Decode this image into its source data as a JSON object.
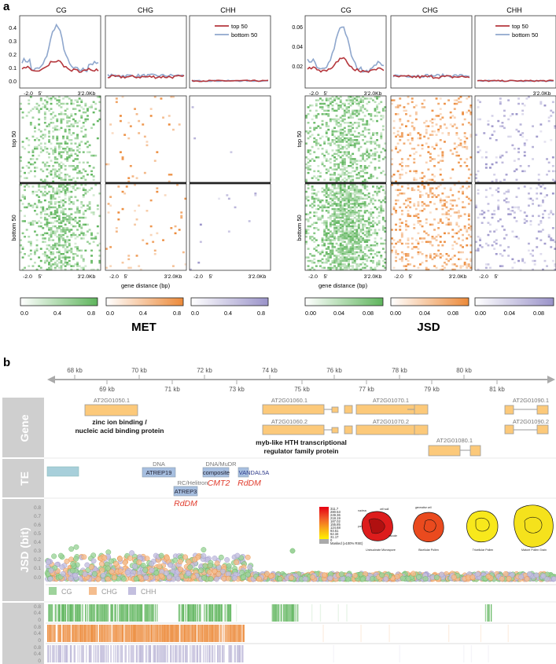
{
  "panel_labels": {
    "a": "a",
    "b": "b"
  },
  "panel_a": {
    "met": {
      "label": "MET",
      "contexts": [
        "CG",
        "CHG",
        "CHH"
      ],
      "legend_entries": [
        "top 50",
        "bottom 50"
      ],
      "profile_yticks": [
        "0.4",
        "0.3",
        "0.2",
        "0.1",
        "0.0"
      ],
      "profile_xticks": [
        "-2.0",
        "5'",
        "3'2.0Kb"
      ],
      "heatmap_xticks": [
        "-2.0",
        "5'",
        "3'2.0Kb"
      ],
      "row_labels": [
        "top 50",
        "bottom 50"
      ],
      "xlabel": "gene distance (bp)",
      "colorbar_ticks": [
        "0.0",
        "0.4",
        "0.8"
      ]
    },
    "jsd": {
      "label": "JSD",
      "contexts": [
        "CG",
        "CHG",
        "CHH"
      ],
      "legend_entries": [
        "top 50",
        "bottom 50"
      ],
      "profile_yticks": [
        "0.06",
        "0.04",
        "0.02"
      ],
      "profile_xticks": [
        "-2.0",
        "5'",
        "3'2.0Kb"
      ],
      "heatmap_xticks": [
        "-2.0",
        "5'",
        "3'2.0Kb"
      ],
      "row_labels": [
        "top 50",
        "bottom 50"
      ],
      "xlabel": "gene distance (bp)",
      "colorbar_ticks": [
        "0.00",
        "0.04",
        "0.08"
      ]
    },
    "colors": {
      "top": "#b5373d",
      "bottom": "#8fa7cd",
      "CG": "#5fb55d",
      "CHG": "#ec8a3a",
      "CHH": "#9a93c9"
    }
  },
  "panel_b": {
    "ruler_top": [
      "68 kb",
      "70 kb",
      "72 kb",
      "74 kb",
      "76 kb",
      "78 kb",
      "80 kb"
    ],
    "ruler_bottom": [
      "69 kb",
      "71 kb",
      "73 kb",
      "75 kb",
      "77 kb",
      "79 kb",
      "81 kb"
    ],
    "track_labels": {
      "gene": "Gene",
      "te": "TE",
      "jsd": "JSD (bit)"
    },
    "genes": [
      "AT2G01050.1",
      "AT2G01060.1",
      "AT2G01060.2",
      "AT2G01070.1",
      "AT2G01070.2",
      "AT2G01080.1",
      "AT2G01090.1",
      "AT2G01090.2"
    ],
    "gene_descriptions": {
      "zinc": "zinc ion binding /",
      "zinc2": "nucleic acid binding protein",
      "myb": "myb-like HTH transcriptional",
      "myb2": "regulator family protein"
    },
    "te": {
      "dna": "DNA",
      "atrep19": "ATREP19",
      "rc": "RC/Helitron",
      "atrep3": "ATREP3",
      "rddm1": "RdDM",
      "dnamudr": "DNA/MuDR",
      "composite": "composite",
      "vandal": "VANDAL5A",
      "cmt2": "CMT2",
      "rddm2": "RdDM"
    },
    "jsd_yticks": [
      "0.8",
      "0.7",
      "0.6",
      "0.5",
      "0.4",
      "0.3",
      "0.2",
      "0.1",
      "0.0"
    ],
    "jsd_legend": [
      "CG",
      "CHG",
      "CHH"
    ],
    "bar_yticks": [
      "0.8",
      "0.4",
      "0"
    ],
    "inset": {
      "scale_values": [
        "311.7",
        "280.53",
        "249.36",
        "218.19",
        "187.02",
        "155.85",
        "124.68",
        "93.51",
        "62.34",
        "31.17",
        "0"
      ],
      "masked_label": "Masked (≥100% RSE)",
      "stage_labels": [
        "Uninucleate Microspore",
        "Bicellular Pollen",
        "Tricellular Pollen",
        "Mature Pollen Grain"
      ],
      "cell_labels": [
        "nucleus",
        "cell wall",
        "vacuole",
        "pore",
        "generative cell"
      ]
    }
  }
}
